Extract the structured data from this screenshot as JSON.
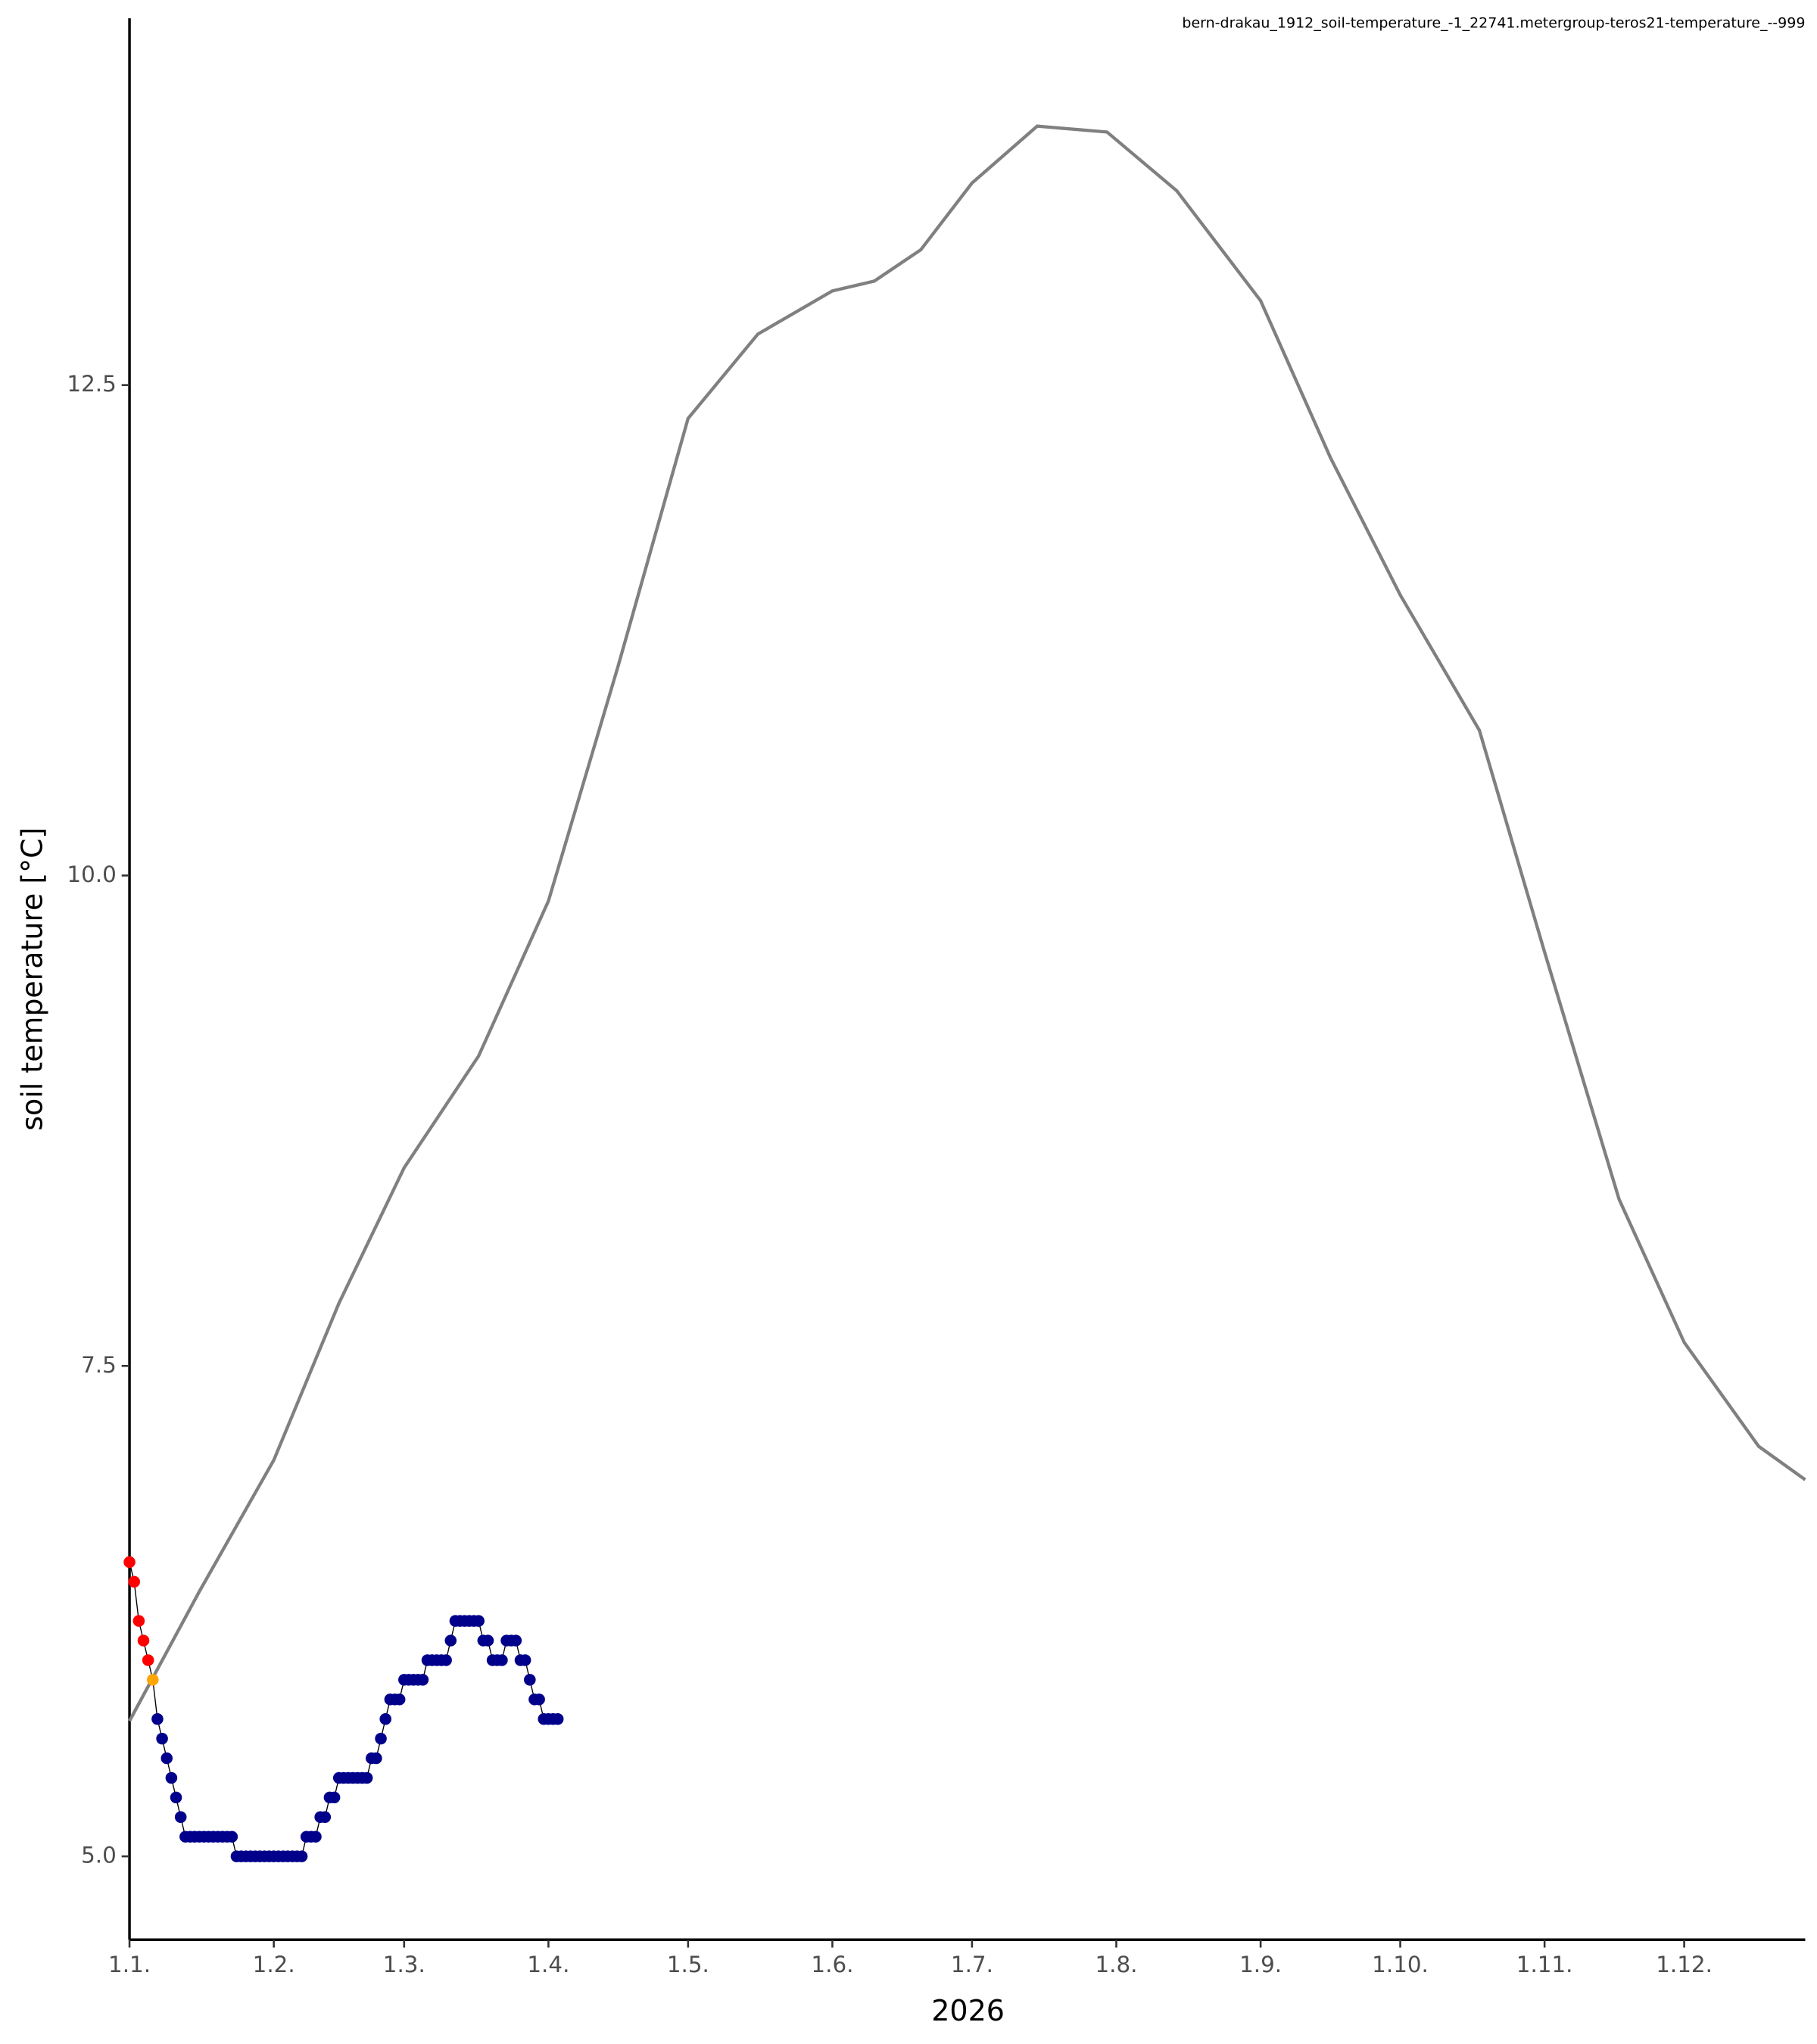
{
  "chart_data": {
    "type": "scatter",
    "annotation": "bern-drakau_1912_soil-temperature_-1_22741.metergroup-teros21-temperature_--999",
    "xlabel": "2026",
    "ylabel": "soil temperature [°C]",
    "xlim": [
      0,
      360
    ],
    "ylim": [
      4.575,
      14.37
    ],
    "xticks": [
      {
        "value": 0,
        "label": "1.1."
      },
      {
        "value": 31,
        "label": "1.2."
      },
      {
        "value": 59,
        "label": "1.3."
      },
      {
        "value": 90,
        "label": "1.4."
      },
      {
        "value": 120,
        "label": "1.5."
      },
      {
        "value": 151,
        "label": "1.6."
      },
      {
        "value": 181,
        "label": "1.7."
      },
      {
        "value": 212,
        "label": "1.8."
      },
      {
        "value": 243,
        "label": "1.9."
      },
      {
        "value": 273,
        "label": "1.10."
      },
      {
        "value": 304,
        "label": "1.11."
      },
      {
        "value": 334,
        "label": "1.12."
      }
    ],
    "yticks": [
      {
        "value": 5,
        "label": "5.0"
      },
      7.5,
      {
        "value": 10,
        "label": "10.0"
      },
      12.5
    ],
    "line_color": "#000000",
    "reference": {
      "color": "#808080",
      "x": [
        0,
        15,
        31,
        45,
        59,
        75,
        90,
        105,
        120,
        135,
        151,
        160,
        170,
        181,
        195,
        210,
        225,
        243,
        258,
        273,
        290,
        304,
        320,
        334,
        350,
        360
      ],
      "values": [
        5.69,
        6.35,
        7.02,
        7.82,
        8.51,
        9.08,
        9.87,
        11.07,
        12.33,
        12.76,
        12.98,
        13.03,
        13.19,
        13.53,
        13.82,
        13.79,
        13.49,
        12.93,
        12.13,
        11.43,
        10.74,
        9.61,
        8.35,
        7.62,
        7.09,
        6.92
      ]
    },
    "series": [
      {
        "color": "#ff0000",
        "x": [
          0,
          1,
          2,
          3,
          4
        ],
        "values": [
          6.5,
          6.4,
          6.2,
          6.1,
          6.0
        ]
      },
      {
        "color": "#ffa500",
        "x": [
          5
        ],
        "values": [
          5.9
        ]
      },
      {
        "color": "#00008b",
        "x": [
          6,
          7,
          8,
          9,
          10,
          11,
          12,
          13,
          14,
          15,
          16,
          17,
          18,
          19,
          20,
          21,
          22,
          23,
          24,
          25,
          26,
          27,
          28,
          29,
          30,
          31,
          32,
          33,
          34,
          35,
          36,
          37,
          38,
          39,
          40,
          41,
          42,
          43,
          44,
          45,
          46,
          47,
          48,
          49,
          50,
          51,
          52,
          53,
          54,
          55,
          56,
          57,
          58,
          59,
          60,
          61,
          62,
          63,
          64,
          65,
          66,
          67,
          68,
          69,
          70,
          71,
          72,
          73,
          74,
          75,
          76,
          77,
          78,
          79,
          80,
          81,
          82,
          83,
          84,
          85,
          86,
          87,
          88,
          89,
          90,
          91,
          92
        ],
        "values": [
          5.7,
          5.6,
          5.5,
          5.4,
          5.3,
          5.2,
          5.1,
          5.1,
          5.1,
          5.1,
          5.1,
          5.1,
          5.1,
          5.1,
          5.1,
          5.1,
          5.1,
          5.0,
          5.0,
          5.0,
          5.0,
          5.0,
          5.0,
          5.0,
          5.0,
          5.0,
          5.0,
          5.0,
          5.0,
          5.0,
          5.0,
          5.0,
          5.1,
          5.1,
          5.1,
          5.2,
          5.2,
          5.3,
          5.3,
          5.4,
          5.4,
          5.4,
          5.4,
          5.4,
          5.4,
          5.4,
          5.5,
          5.5,
          5.6,
          5.7,
          5.8,
          5.8,
          5.8,
          5.9,
          5.9,
          5.9,
          5.9,
          5.9,
          6.0,
          6.0,
          6.0,
          6.0,
          6.0,
          6.1,
          6.2,
          6.2,
          6.2,
          6.2,
          6.2,
          6.2,
          6.1,
          6.1,
          6.0,
          6.0,
          6.0,
          6.1,
          6.1,
          6.1,
          6.0,
          6.0,
          5.9,
          5.8,
          5.8,
          5.7,
          5.7,
          5.7,
          5.7
        ]
      }
    ]
  }
}
